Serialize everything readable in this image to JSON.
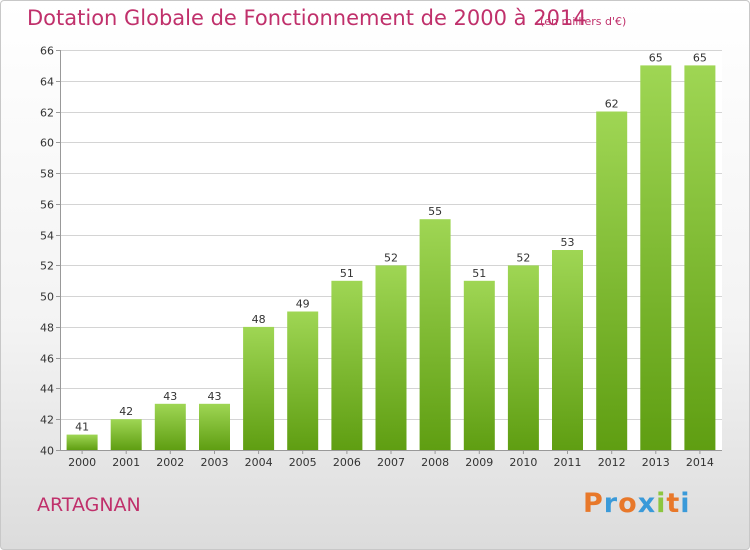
{
  "header": {
    "title": "Dotation Globale de Fonctionnement de 2000 à 2014",
    "subtitle": "(en milliers d'€)"
  },
  "footer": {
    "commune": "ARTAGNAN",
    "brand": [
      "P",
      "r",
      "o",
      "x",
      "i",
      "t",
      "i"
    ],
    "brand_colors": [
      "#e8782a",
      "#3a9ad9",
      "#e8782a",
      "#3a9ad9",
      "#8cc63f",
      "#e8782a",
      "#3a9ad9"
    ]
  },
  "colors": {
    "bar_top": "#9fd654",
    "bar_bottom": "#5f9e12",
    "title": "#c0306b",
    "grid": "#d4d4d4"
  },
  "chart_data": {
    "type": "bar",
    "categories": [
      "2000",
      "2001",
      "2002",
      "2003",
      "2004",
      "2005",
      "2006",
      "2007",
      "2008",
      "2009",
      "2010",
      "2011",
      "2012",
      "2013",
      "2014"
    ],
    "values": [
      41,
      42,
      43,
      43,
      48,
      49,
      51,
      52,
      55,
      51,
      52,
      53,
      62,
      65,
      65
    ],
    "ylim": [
      40,
      66
    ],
    "yticks": [
      40,
      42,
      44,
      46,
      48,
      50,
      52,
      54,
      56,
      58,
      60,
      62,
      64,
      66
    ],
    "grid": true,
    "data_labels": true
  }
}
